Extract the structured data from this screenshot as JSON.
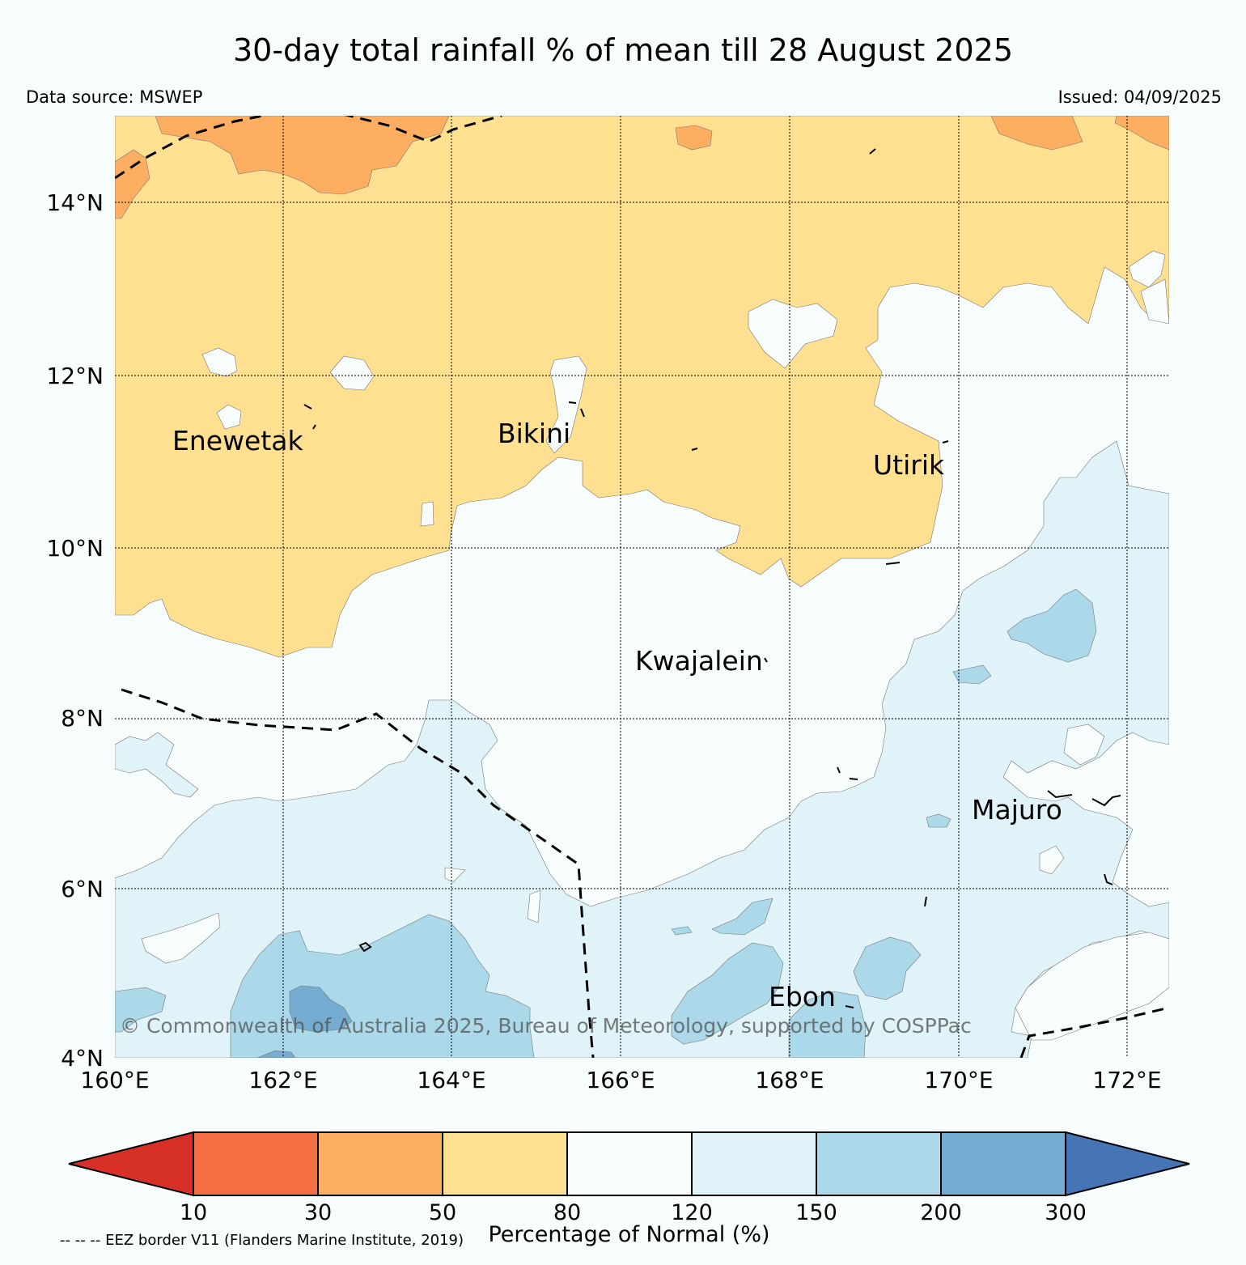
{
  "header": {
    "title": "30-day total rainfall % of mean till 28 August 2025",
    "source": "Data source: MSWEP",
    "issued": "Issued: 04/09/2025"
  },
  "map": {
    "lat_labels": [
      "14°N",
      "12°N",
      "10°N",
      "8°N",
      "6°N",
      "4°N"
    ],
    "lon_labels": [
      "160°E",
      "162°E",
      "164°E",
      "166°E",
      "168°E",
      "170°E",
      "172°E"
    ],
    "places": [
      "Enewetak",
      "Bikini",
      "Utirik",
      "Kwajalein",
      "Majuro",
      "Ebon"
    ],
    "copyright": "© Commonwealth of Australia 2025, Bureau of Meteorology, supported by COSPPac"
  },
  "colorbar": {
    "ticks": [
      "10",
      "30",
      "50",
      "80",
      "120",
      "150",
      "200",
      "300"
    ],
    "colors": [
      "#d73027",
      "#f46d43",
      "#fdae61",
      "#fee090",
      "#f7fcfd",
      "#e0f3f8",
      "#abd9e9",
      "#74add1",
      "#4575b4"
    ],
    "label": "Percentage of Normal (%)"
  },
  "legend": {
    "eez_note": "-- -- -- EEZ border V11 (Flanders Marine Institute, 2019)"
  }
}
